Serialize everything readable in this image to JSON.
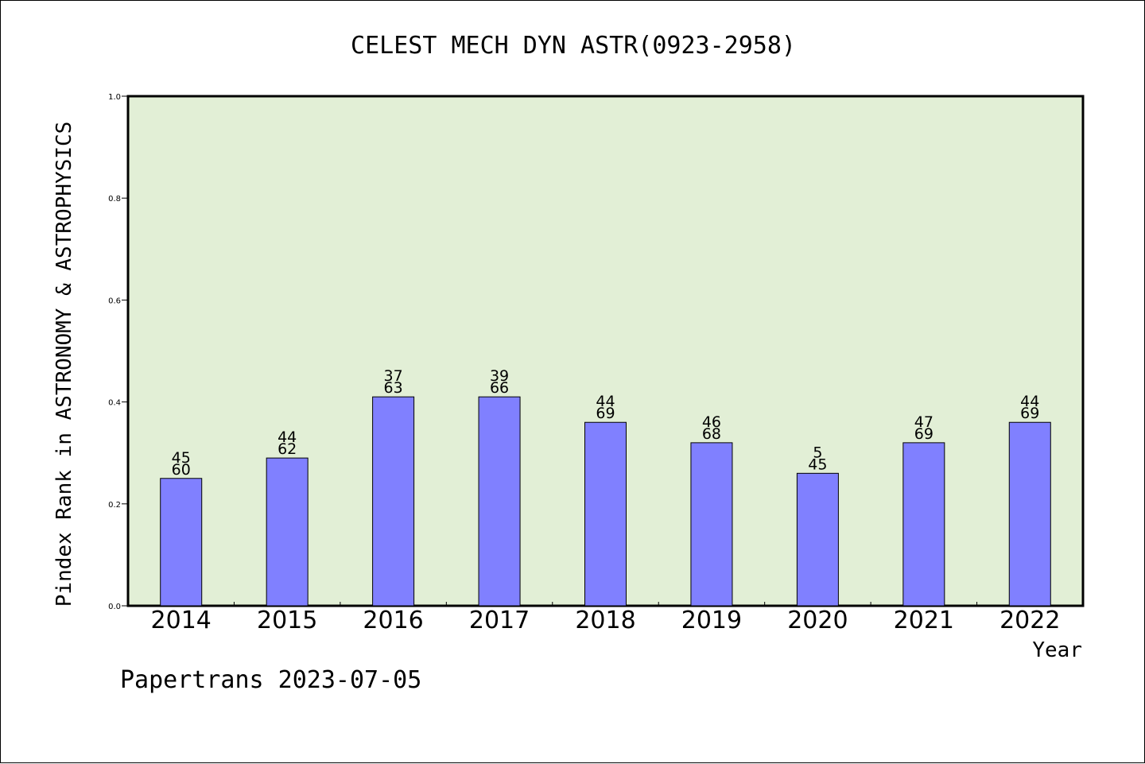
{
  "chart_data": {
    "type": "bar",
    "title": "CELEST MECH DYN ASTR(0923-2958)",
    "xlabel": "Year",
    "ylabel": "Pindex Rank in ASTRONOMY & ASTROPHYSICS",
    "ylim": [
      0,
      1.0
    ],
    "yticks": [
      "0.0",
      "0.2",
      "0.4",
      "0.6",
      "0.8",
      "1.0"
    ],
    "grid": false,
    "categories": [
      "2014",
      "2015",
      "2016",
      "2017",
      "2018",
      "2019",
      "2020",
      "2021",
      "2022"
    ],
    "values": [
      0.25,
      0.29,
      0.41,
      0.41,
      0.36,
      0.32,
      0.26,
      0.32,
      0.36
    ],
    "rank_labels": [
      "45",
      "44",
      "37",
      "39",
      "44",
      "46",
      "5",
      "47",
      "44"
    ],
    "total_labels": [
      "60",
      "62",
      "63",
      "66",
      "69",
      "68",
      "45",
      "69",
      "69"
    ],
    "colors": {
      "plot_background": "#e2efd6",
      "bar_fill": "#8080ff",
      "bar_stroke": "#000000"
    }
  },
  "footer": {
    "credit": "Papertrans 2023-07-05"
  }
}
